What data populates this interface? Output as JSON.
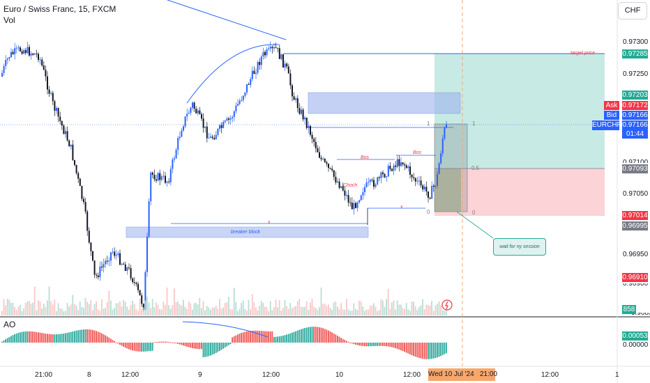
{
  "header": {
    "symbol_title": "Euro / Swiss Franc, 15, FXCM",
    "volume_label": "Vol",
    "ao_label": "AO",
    "currency_button": "CHF"
  },
  "price_axis": {
    "labels": [
      "0.97300",
      "0.97250",
      "0.97050",
      "0.96950",
      "0.96850"
    ],
    "partial_labels": [
      "0.97100",
      "0.96900"
    ],
    "badges": {
      "target": "0.97285",
      "level_97203": "0.97203",
      "ask_label": "Ask",
      "ask": "0.97172",
      "bid_label": "Bid",
      "bid": "0.97166",
      "symbol": "EURCHF",
      "last": "0.97166",
      "countdown": "01:44",
      "level_97093": "0.97093",
      "level_97014": "0.97014",
      "level_96995": "0.96995",
      "level_96910": "0.96910",
      "volume": "858",
      "ao_value": "0.00053",
      "ao_zero": "0.00000"
    }
  },
  "time_axis": {
    "labels": [
      "21:00",
      "8",
      "12:00",
      "9",
      "12:00",
      "10",
      "12:00",
      "12:00",
      "1"
    ],
    "current_time_badge": "Wed 10 Jul '24   21:00"
  },
  "annotations": {
    "target_price": "target price",
    "breaker_block": "breaker block",
    "bos": "Bos",
    "choch": "Choch",
    "x": "x",
    "fib_one": "1",
    "fib_half": "0.5",
    "fib_zero": "0",
    "wait_note": "wait for ny session",
    "lone_one": "1"
  },
  "colors": {
    "bull": "#2962ff",
    "bear": "#131722",
    "target_green": "#22ab94",
    "stop_red": "#f23645",
    "line_blue": "#2962ff",
    "box_blue": "#9db2ec"
  }
}
